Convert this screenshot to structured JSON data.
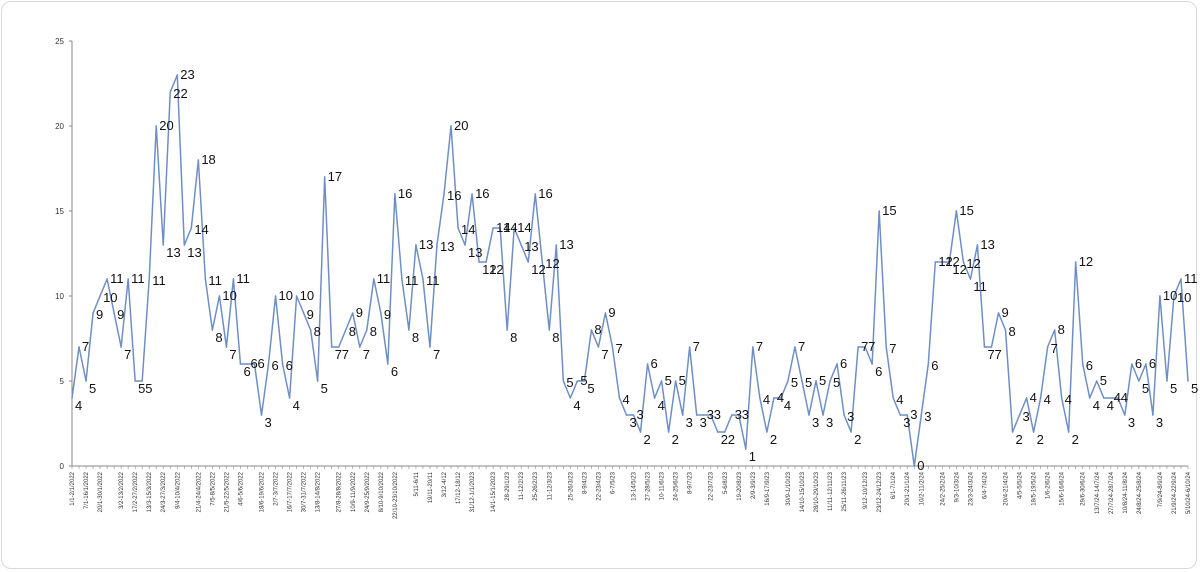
{
  "chart_data": {
    "type": "line",
    "title": "",
    "xlabel": "",
    "ylabel": "",
    "ylim": [
      0,
      25
    ],
    "yticks": [
      "0",
      "5",
      "10",
      "15",
      "20",
      "25"
    ],
    "grid": false,
    "legend": "none",
    "line_color": "#6f8fc4",
    "values": [
      4,
      7,
      5,
      9,
      10,
      11,
      9,
      7,
      11,
      5,
      5,
      11,
      20,
      13,
      22,
      23,
      13,
      14,
      18,
      11,
      8,
      10,
      7,
      11,
      6,
      6,
      6,
      3,
      6,
      10,
      6,
      4,
      10,
      9,
      8,
      5,
      17,
      7,
      7,
      8,
      9,
      7,
      8,
      11,
      9,
      6,
      16,
      11,
      8,
      13,
      11,
      7,
      13,
      16,
      20,
      14,
      13,
      16,
      12,
      12,
      14,
      14,
      8,
      14,
      13,
      12,
      16,
      12,
      8,
      13,
      5,
      4,
      5,
      5,
      8,
      7,
      9,
      7,
      4,
      3,
      3,
      2,
      6,
      4,
      5,
      2,
      5,
      3,
      7,
      3,
      3,
      3,
      2,
      2,
      3,
      3,
      1,
      7,
      4,
      2,
      4,
      4,
      5,
      7,
      5,
      3,
      5,
      3,
      5,
      6,
      3,
      2,
      7,
      7,
      6,
      15,
      7,
      4,
      3,
      3,
      0,
      3,
      6,
      12,
      12,
      12,
      15,
      12,
      11,
      13,
      7,
      7,
      9,
      8,
      2,
      3,
      4,
      2,
      4,
      7,
      8,
      4,
      2,
      12,
      6,
      4,
      5,
      4,
      4,
      4,
      3,
      6,
      5,
      6,
      3,
      10,
      5,
      10,
      11,
      5
    ],
    "x_tick_labels": [
      "1/1-2/1/2022",
      "7/1-16/1/2022",
      "20/1-30/1/2022",
      "3/2-13/2/2022",
      "17/2-27/2/2022",
      "13/3-15/3/2022",
      "24/3-27/3/2022",
      "9/4-10/4/2022",
      "21/4-24/4/2022",
      "7/5-8/5/2022",
      "21/5-22/5/2022",
      "4/6-5/6/2022",
      "18/6-19/6/2022",
      "2/7-3/7/2022",
      "16/7-17/7/2022",
      "30/7-31/7/2022",
      "13/8-14/8/2022",
      "27/8-28/8/2022",
      "10/9-11/9/2022",
      "24/9-25/9/2022",
      "8/10-9/10/2022",
      "22/10-23/10/2022",
      "5/11-6/11",
      "19/11-20/11",
      "3/12-4/12",
      "17/12-18/12",
      "31/12-1/1/2023",
      "14/1-15/1/2023",
      "28-29/1/23",
      "11-12/2/23",
      "25-26/2/23",
      "11-12/3/23",
      "25-26/3/23",
      "8-9/4/23",
      "22-23/4/23",
      "6-7/5/23",
      "13-14/5/23",
      "27-28/5/23",
      "10-11/6/23",
      "24-25/6/23",
      "8-9/7/23",
      "22-23/7/23",
      "5-6/8/23",
      "19-20/8/23",
      "2/9-3/9/23",
      "16/9-17/9/23",
      "30/9-1/10/23",
      "14/10-15/10/23",
      "28/10-29/10/23",
      "11/11-12/11/23",
      "25/11-26/11/23",
      "9/12-10/12/23",
      "23/12-24/12/23",
      "6/1-7/1/24",
      "20/1-21/1/24",
      "10/2-11/2/24",
      "24/2-25/2/24",
      "9/3-10/3/24",
      "23/3-24/3/24",
      "6/4-7/4/24",
      "20/4-21/4/24",
      "4/5-5/5/24",
      "18/5-19/5/24",
      "1/6-2/6/24",
      "15/6-16/6/24",
      "29/6-30/6/24",
      "13/7/24-14/7/24",
      "27/7/24-28/7/24",
      "10/8/24-11/8/24",
      "24/8/24-25/8/24",
      "7/9/24-8/9/24",
      "21/9/24-22/9/24",
      "5/10/24-6/10/24"
    ]
  }
}
